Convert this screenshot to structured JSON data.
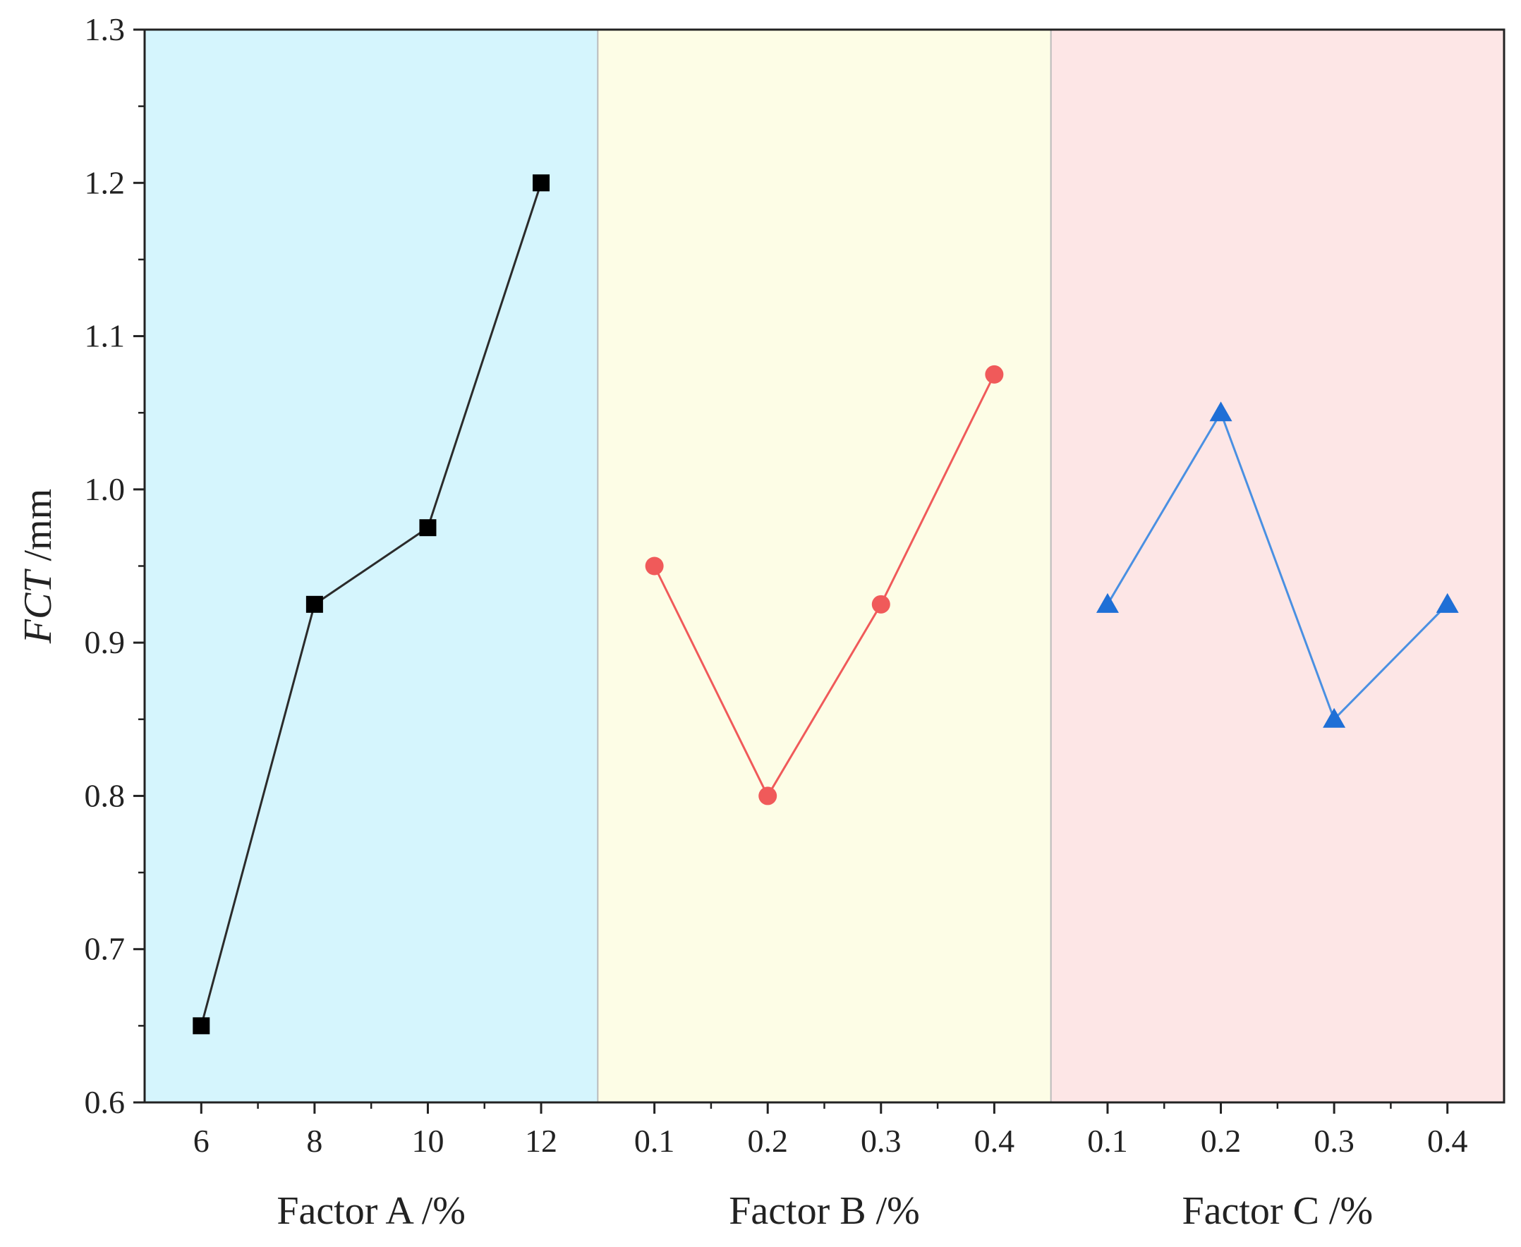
{
  "chart_data": {
    "type": "line",
    "ylabel_italic": "FCT",
    "ylabel_unit": " /mm",
    "ylim": [
      0.6,
      1.3
    ],
    "yticks": [
      "0.6",
      "0.7",
      "0.8",
      "0.9",
      "1.0",
      "1.1",
      "1.2",
      "1.3"
    ],
    "grid": false,
    "panels": [
      {
        "xlabel": "Factor A /%",
        "background": "#d5f5fd",
        "color": "#2b2b2b",
        "marker": "square",
        "categories": [
          "6",
          "8",
          "10",
          "12"
        ],
        "values": [
          0.65,
          0.925,
          0.975,
          1.2
        ]
      },
      {
        "xlabel": "Factor B /%",
        "background": "#fdfde6",
        "color": "#f05a5a",
        "marker": "circle",
        "categories": [
          "0.1",
          "0.2",
          "0.3",
          "0.4"
        ],
        "values": [
          0.95,
          0.8,
          0.925,
          1.075
        ]
      },
      {
        "xlabel": "Factor C /%",
        "background": "#fde6e6",
        "color": "#4a90e2",
        "marker": "triangle",
        "categories": [
          "0.1",
          "0.2",
          "0.3",
          "0.4"
        ],
        "values": [
          0.925,
          1.05,
          0.85,
          0.925
        ]
      }
    ]
  }
}
